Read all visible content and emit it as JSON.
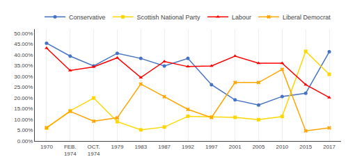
{
  "chart_data": {
    "type": "line",
    "categories": [
      "1970",
      "FEB.\n1974",
      "OCT.\n1974",
      "1979",
      "1983",
      "1987",
      "1992",
      "1997",
      "2001",
      "2005",
      "2010",
      "2015",
      "2017"
    ],
    "series": [
      {
        "name": "Conservative",
        "color": "#4472C4",
        "marker": "circle",
        "values": [
          0.455,
          0.395,
          0.349,
          0.408,
          0.384,
          0.349,
          0.384,
          0.262,
          0.191,
          0.167,
          0.207,
          0.222,
          0.415
        ]
      },
      {
        "name": "Scottish National Party",
        "color": "#FFD700",
        "marker": "square",
        "values": [
          0.06,
          0.14,
          0.2,
          0.09,
          0.052,
          0.065,
          0.115,
          0.112,
          0.11,
          0.099,
          0.114,
          0.417,
          0.31
        ]
      },
      {
        "name": "Labour",
        "color": "#FF0000",
        "marker": "triangle-up",
        "values": [
          0.432,
          0.328,
          0.345,
          0.387,
          0.295,
          0.37,
          0.346,
          0.349,
          0.395,
          0.362,
          0.362,
          0.262,
          0.202
        ]
      },
      {
        "name": "Liberal Democrat",
        "color": "#FFA500",
        "marker": "x",
        "values": [
          0.062,
          0.138,
          0.092,
          0.108,
          0.265,
          0.206,
          0.147,
          0.109,
          0.272,
          0.272,
          0.333,
          0.047,
          0.061
        ]
      }
    ],
    "ylim": [
      0.0,
      0.52
    ],
    "yticks": [
      {
        "value": 0.0,
        "label": "0.00%"
      },
      {
        "value": 0.05,
        "label": "5.00%"
      },
      {
        "value": 0.1,
        "label": "10.00%"
      },
      {
        "value": 0.15,
        "label": "15.00%"
      },
      {
        "value": 0.2,
        "label": "20.00%"
      },
      {
        "value": 0.25,
        "label": "25.00%"
      },
      {
        "value": 0.3,
        "label": "30.00%"
      },
      {
        "value": 0.35,
        "label": "35.00%"
      },
      {
        "value": 0.4,
        "label": "40.00%"
      },
      {
        "value": 0.45,
        "label": "45.00%"
      },
      {
        "value": 0.5,
        "label": "50.00%"
      }
    ],
    "grid": "x",
    "legend": "top"
  }
}
